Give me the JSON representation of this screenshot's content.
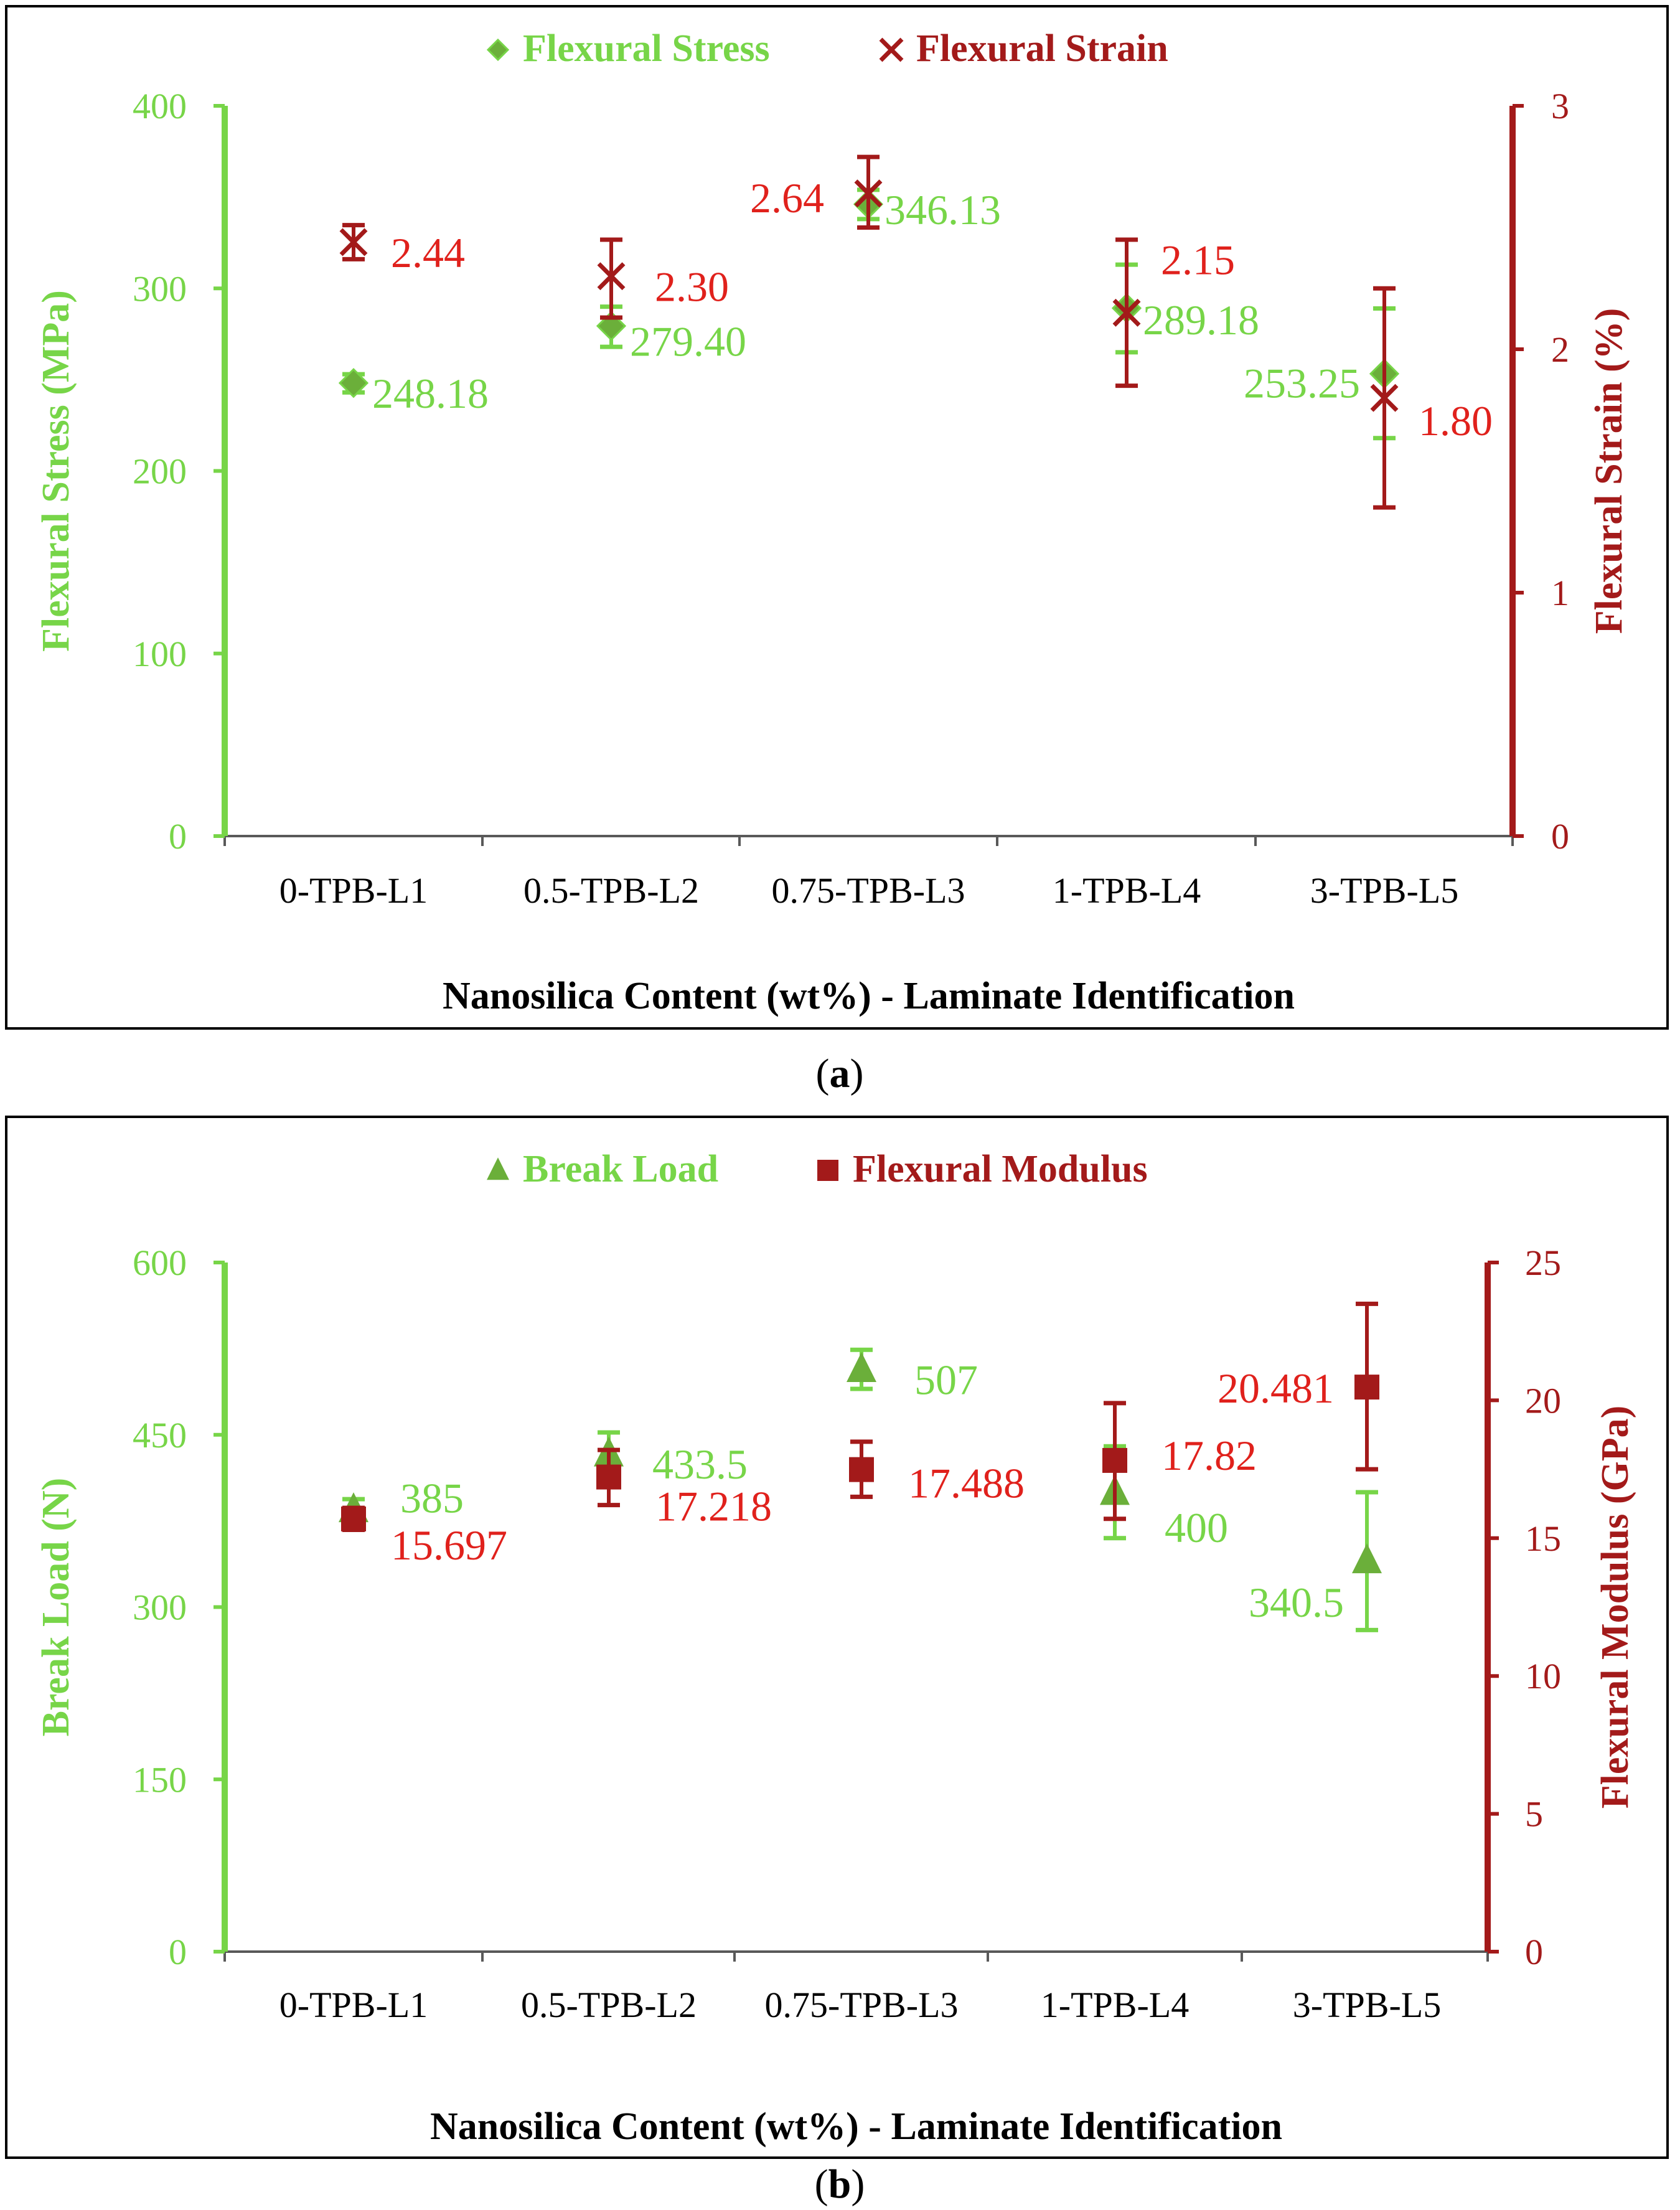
{
  "colors": {
    "green": "#77D548",
    "green_dark": "#6BAF3A",
    "red": "#E0211C",
    "dark_red": "#A31A1A",
    "black": "#000000",
    "tick_gray": "#595959"
  },
  "panels": [
    {
      "caption": "(a)",
      "caption_letter": "a",
      "legend": [
        {
          "label": "Flexural Stress",
          "marker": "diamond-icon",
          "color_key": "green"
        },
        {
          "label": "Flexural Strain",
          "marker": "x-mark-icon",
          "color_key": "dark_red"
        }
      ],
      "xlabel": "Nanosilica Content (wt%) - Laminate Identification",
      "categories": [
        "0-TPB-L1",
        "0.5-TPB-L2",
        "0.75-TPB-L3",
        "1-TPB-L4",
        "3-TPB-L5"
      ]
    },
    {
      "caption": "(b)",
      "caption_letter": "b",
      "legend": [
        {
          "label": "Break Load",
          "marker": "triangle-icon",
          "color_key": "green"
        },
        {
          "label": "Flexural Modulus",
          "marker": "square-icon",
          "color_key": "dark_red"
        }
      ],
      "xlabel": "Nanosilica Content (wt%) - Laminate Identification",
      "categories": [
        "0-TPB-L1",
        "0.5-TPB-L2",
        "0.75-TPB-L3",
        "1-TPB-L4",
        "3-TPB-L5"
      ]
    }
  ],
  "chart_data": [
    {
      "type": "scatter",
      "title": "",
      "categories": [
        "0-TPB-L1",
        "0.5-TPB-L2",
        "0.75-TPB-L3",
        "1-TPB-L4",
        "3-TPB-L5"
      ],
      "xlabel": "Nanosilica Content (wt%) - Laminate Identification",
      "y_left": {
        "label": "Flexural Stress (MPa)",
        "ylim": [
          0,
          400
        ],
        "ticks": [
          0,
          100,
          200,
          300,
          400
        ],
        "tick_labels": [
          "0",
          "100",
          "200",
          "300",
          "400"
        ]
      },
      "y_right": {
        "label": "Flexural Strain (%)",
        "ylim": [
          0,
          3
        ],
        "ticks": [
          0,
          1,
          2,
          3
        ],
        "tick_labels": [
          "0",
          "1",
          "2",
          "3"
        ]
      },
      "grid": false,
      "legend_position": "top-center",
      "series": [
        {
          "name": "Flexural Stress",
          "axis": "left",
          "marker": "diamond",
          "color": "#77D548",
          "values": [
            248.18,
            279.4,
            346.13,
            289.18,
            253.25
          ],
          "labels": [
            "248.18",
            "279.40",
            "346.13",
            "289.18",
            "253.25"
          ],
          "error_low": [
            243,
            268,
            338,
            265,
            218
          ],
          "error_high": [
            253,
            290,
            354,
            313,
            289
          ]
        },
        {
          "name": "Flexural Strain",
          "axis": "right",
          "marker": "x",
          "color": "#A31A1A",
          "label_color": "#E0211C",
          "values": [
            2.44,
            2.3,
            2.64,
            2.15,
            1.8
          ],
          "labels": [
            "2.44",
            "2.30",
            "2.64",
            "2.15",
            "1.80"
          ],
          "error_low": [
            2.37,
            2.13,
            2.5,
            1.85,
            1.35
          ],
          "error_high": [
            2.51,
            2.45,
            2.79,
            2.45,
            2.25
          ]
        }
      ]
    },
    {
      "type": "scatter",
      "title": "",
      "categories": [
        "0-TPB-L1",
        "0.5-TPB-L2",
        "0.75-TPB-L3",
        "1-TPB-L4",
        "3-TPB-L5"
      ],
      "xlabel": "Nanosilica Content (wt%) - Laminate Identification",
      "y_left": {
        "label": "Break Load (N)",
        "ylim": [
          0,
          600
        ],
        "ticks": [
          0,
          150,
          300,
          450,
          600
        ],
        "tick_labels": [
          "0",
          "150",
          "300",
          "450",
          "600"
        ]
      },
      "y_right": {
        "label": "Flexural  Modulus (GPa)",
        "ylim": [
          0,
          25
        ],
        "ticks": [
          0,
          5,
          10,
          15,
          20,
          25
        ],
        "tick_labels": [
          "0",
          "5",
          "10",
          "15",
          "20",
          "25"
        ]
      },
      "grid": false,
      "legend_position": "top-center",
      "series": [
        {
          "name": "Break Load",
          "axis": "left",
          "marker": "triangle",
          "color": "#77D548",
          "values": [
            385,
            433.5,
            507,
            400,
            340.5
          ],
          "labels": [
            "385",
            "433.5",
            "507",
            "400",
            "340.5"
          ],
          "error_low": [
            376,
            415,
            490,
            360,
            280
          ],
          "error_high": [
            394,
            452,
            524,
            440,
            400
          ]
        },
        {
          "name": "Flexural Modulus",
          "axis": "right",
          "marker": "square",
          "color": "#A31A1A",
          "label_color": "#E0211C",
          "values": [
            15.697,
            17.218,
            17.488,
            17.82,
            20.481
          ],
          "labels": [
            "15.697",
            "17.218",
            "17.488",
            "17.82",
            "20.481"
          ],
          "error_low": [
            15.3,
            16.2,
            16.5,
            15.7,
            17.5
          ],
          "error_high": [
            16.1,
            18.2,
            18.5,
            19.9,
            23.5
          ]
        }
      ]
    }
  ]
}
